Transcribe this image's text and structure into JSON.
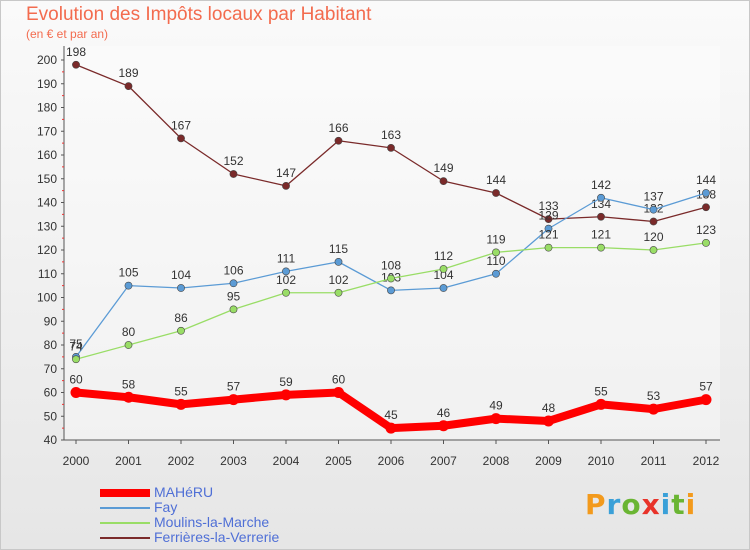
{
  "title": "Evolution des Impôts locaux par Habitant",
  "subtitle": "(en € et par an)",
  "logo": {
    "text": "Proxiti",
    "colors": [
      "#f39a1c",
      "#3aa0d8",
      "#6ab533",
      "#e8332a",
      "#3aa0d8",
      "#6ab533",
      "#f39a1c"
    ]
  },
  "chart_data": {
    "type": "line",
    "x": [
      "2000",
      "2001",
      "2002",
      "2003",
      "2004",
      "2005",
      "2006",
      "2007",
      "2008",
      "2009",
      "2010",
      "2011",
      "2012"
    ],
    "ylim": [
      40,
      200
    ],
    "yticks": [
      40,
      50,
      60,
      70,
      80,
      90,
      100,
      110,
      120,
      130,
      140,
      150,
      160,
      170,
      180,
      190,
      200
    ],
    "grid": false,
    "legend_position": "bottom-left",
    "series": [
      {
        "name": "MAHéRU",
        "color": "#ff0000",
        "values": [
          60,
          58,
          55,
          57,
          59,
          60,
          45,
          46,
          49,
          48,
          55,
          53,
          57
        ]
      },
      {
        "name": "Fay",
        "color": "#5b9bd5",
        "values": [
          75,
          105,
          104,
          106,
          111,
          115,
          103,
          104,
          110,
          129,
          142,
          137,
          144
        ]
      },
      {
        "name": "Moulins-la-Marche",
        "color": "#99dd66",
        "values": [
          74,
          80,
          86,
          95,
          102,
          102,
          108,
          112,
          119,
          121,
          121,
          120,
          123
        ]
      },
      {
        "name": "Ferrières-la-Verrerie",
        "color": "#7a2a2a",
        "values": [
          198,
          189,
          167,
          152,
          147,
          166,
          163,
          149,
          144,
          133,
          134,
          132,
          138
        ]
      }
    ]
  }
}
